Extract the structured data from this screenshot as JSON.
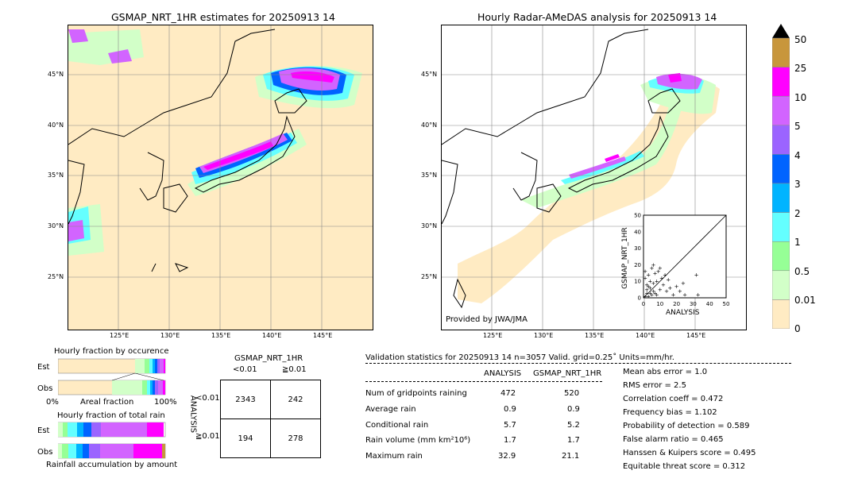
{
  "left_map": {
    "title": "GSMAP_NRT_1HR estimates for 20250913 14",
    "lat_labels": [
      "45°N",
      "40°N",
      "35°N",
      "30°N",
      "25°N"
    ],
    "lon_labels": [
      "125°E",
      "130°E",
      "135°E",
      "140°E",
      "145°E"
    ]
  },
  "right_map": {
    "title": "Hourly Radar-AMeDAS analysis for 20250913 14",
    "lat_labels": [
      "45°N",
      "40°N",
      "35°N",
      "30°N",
      "25°N"
    ],
    "lon_labels": [
      "125°E",
      "130°E",
      "135°E",
      "140°E",
      "145°E"
    ],
    "credit": "Provided by JWA/JMA"
  },
  "colorbar": {
    "labels": [
      "50",
      "25",
      "10",
      "5",
      "4",
      "3",
      "2",
      "1",
      "0.5",
      "0.01",
      "0"
    ],
    "colors": [
      "#c8963c",
      "#ff00ff",
      "#d264ff",
      "#9b64ff",
      "#0064ff",
      "#00b4ff",
      "#64ffff",
      "#96ff96",
      "#d2ffc8",
      "#ffebc3"
    ]
  },
  "scatter": {
    "xlabel": "ANALYSIS",
    "ylabel": "GSMAP_NRT_1HR",
    "ticks": [
      "0",
      "10",
      "20",
      "30",
      "40",
      "50"
    ]
  },
  "fraction_occurrence": {
    "title": "Hourly fraction by occurence",
    "row_est": "Est",
    "row_obs": "Obs",
    "axis_left": "0%",
    "axis_mid": "Areal fraction",
    "axis_right": "100%"
  },
  "fraction_total": {
    "title": "Hourly fraction of total rain",
    "row_est": "Est",
    "row_obs": "Obs",
    "caption": "Rainfall accumulation by amount"
  },
  "contingency": {
    "header": "GSMAP_NRT_1HR",
    "col_lt": "<0.01",
    "col_ge": "≧0.01",
    "row_axis": "ANALYSIS",
    "row_lt": "<0.01",
    "row_ge": "≧0.01",
    "cells": [
      "2343",
      "242",
      "194",
      "278"
    ]
  },
  "validation": {
    "header": "Validation statistics for 20250913 14  n=3057 Valid. grid=0.25˚ Units=mm/hr.",
    "col_analysis": "ANALYSIS",
    "col_gsmap": "GSMAP_NRT_1HR",
    "rows": [
      {
        "label": "Num of gridpoints raining",
        "a": "472",
        "g": "520"
      },
      {
        "label": "Average rain",
        "a": "0.9",
        "g": "0.9"
      },
      {
        "label": "Conditional rain",
        "a": "5.7",
        "g": "5.2"
      },
      {
        "label": "Rain volume (mm km²10⁶)",
        "a": "1.7",
        "g": "1.7"
      },
      {
        "label": "Maximum rain",
        "a": "32.9",
        "g": "21.1"
      }
    ],
    "scores": [
      "Mean abs error =    1.0",
      "RMS error =    2.5",
      "Correlation coeff =  0.472",
      "Frequency bias =  1.102",
      "Probability of detection =  0.589",
      "False alarm ratio =  0.465",
      "Hanssen & Kuipers score =  0.495",
      "Equitable threat score =  0.312"
    ]
  },
  "chart_data": [
    {
      "type": "scatter",
      "xlabel": "ANALYSIS",
      "ylabel": "GSMAP_NRT_1HR",
      "xlim": [
        0,
        50
      ],
      "ylim": [
        0,
        50
      ],
      "points": [
        [
          1,
          1
        ],
        [
          2,
          3
        ],
        [
          3,
          1
        ],
        [
          4,
          6
        ],
        [
          5,
          2
        ],
        [
          6,
          4
        ],
        [
          2,
          8
        ],
        [
          1,
          12
        ],
        [
          7,
          3
        ],
        [
          8,
          10
        ],
        [
          3,
          14
        ],
        [
          10,
          5
        ],
        [
          12,
          8
        ],
        [
          14,
          4
        ],
        [
          15,
          11
        ],
        [
          18,
          2
        ],
        [
          20,
          7
        ],
        [
          22,
          4
        ],
        [
          5,
          18
        ],
        [
          6,
          20
        ],
        [
          9,
          16
        ],
        [
          13,
          14
        ],
        [
          25,
          2
        ],
        [
          33,
          2
        ],
        [
          32,
          14
        ],
        [
          2,
          5
        ],
        [
          4,
          3
        ],
        [
          3,
          7
        ],
        [
          6,
          9
        ],
        [
          8,
          2
        ],
        [
          11,
          12
        ],
        [
          16,
          6
        ],
        [
          24,
          9
        ],
        [
          7,
          15
        ],
        [
          4,
          10
        ],
        [
          1,
          16
        ],
        [
          10,
          18
        ]
      ]
    },
    {
      "type": "table",
      "title": "contingency",
      "rows": [
        [
          "2343",
          "242"
        ],
        [
          "194",
          "278"
        ]
      ]
    }
  ]
}
